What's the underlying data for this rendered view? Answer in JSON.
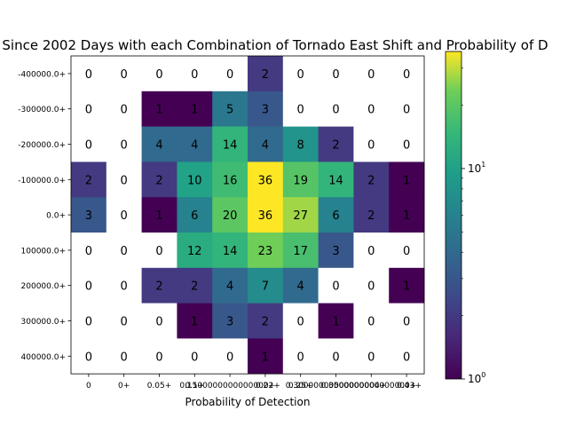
{
  "chart_data": {
    "type": "heatmap",
    "title": "Since 2002 Days with each Combination of Tornado East Shift and Probability of D",
    "xlabel": "Probability of Detection",
    "ylabel": "",
    "x_ticks": [
      "0",
      "0+",
      "0.05+",
      "0.10+",
      "0.15+",
      "0.20+",
      "0.25+",
      "0.30+",
      "0.35+",
      "0.40+"
    ],
    "x_ticks_printed": [
      "0",
      "0+",
      "0.05+",
      "0.1+",
      "0.15000000000000002+",
      "0.2+",
      "0.25+",
      "0.30000000000000004+",
      "0.35000000000000003+",
      "0.4+"
    ],
    "y_ticks": [
      "-400000.0+",
      "-300000.0+",
      "-200000.0+",
      "-100000.0+",
      "0.0+",
      "100000.0+",
      "200000.0+",
      "300000.0+",
      "400000.0+"
    ],
    "values": [
      [
        0,
        0,
        0,
        0,
        0,
        2,
        0,
        0,
        0,
        0
      ],
      [
        0,
        0,
        1,
        1,
        5,
        3,
        0,
        0,
        0,
        0
      ],
      [
        0,
        0,
        4,
        4,
        14,
        4,
        8,
        2,
        0,
        0
      ],
      [
        2,
        0,
        2,
        10,
        16,
        36,
        19,
        14,
        2,
        1
      ],
      [
        3,
        0,
        1,
        6,
        20,
        36,
        27,
        6,
        2,
        1
      ],
      [
        0,
        0,
        0,
        12,
        14,
        23,
        17,
        3,
        0,
        0
      ],
      [
        0,
        0,
        2,
        2,
        4,
        7,
        4,
        0,
        0,
        1
      ],
      [
        0,
        0,
        0,
        1,
        3,
        2,
        0,
        1,
        0,
        0
      ],
      [
        0,
        0,
        0,
        0,
        0,
        1,
        0,
        0,
        0,
        0
      ]
    ],
    "colorbar": {
      "scale": "log",
      "min": 1,
      "max": 36,
      "colormap": "viridis",
      "tick_labels": [
        "10^0",
        "10^1"
      ],
      "tick_values": [
        1,
        10
      ]
    },
    "zero_cells_rendered": "white"
  }
}
